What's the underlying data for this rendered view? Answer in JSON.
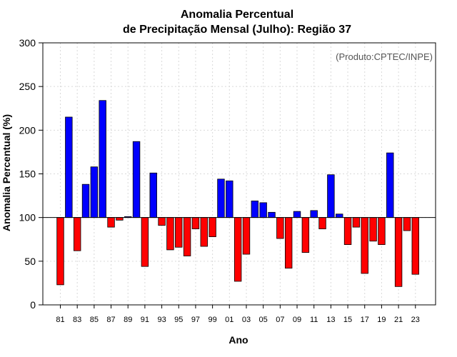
{
  "chart_data": {
    "type": "bar",
    "title_line1": "Anomalia Percentual",
    "title_line2": "de Precipitação Mensal (Julho): Região 37",
    "xlabel": "Ano",
    "ylabel": "Anomalia Percentual (%)",
    "credit": "(Produto:CPTEC/INPE)",
    "baseline": 100,
    "ylim": [
      0,
      300
    ],
    "yticks": [
      "0",
      "50",
      "100",
      "150",
      "200",
      "250",
      "300"
    ],
    "grid": true,
    "categories": [
      "81",
      "82",
      "83",
      "84",
      "85",
      "86",
      "87",
      "88",
      "89",
      "90",
      "91",
      "92",
      "93",
      "94",
      "95",
      "96",
      "97",
      "98",
      "99",
      "00",
      "01",
      "02",
      "03",
      "04",
      "05",
      "06",
      "07",
      "08",
      "09",
      "10",
      "11",
      "12",
      "13",
      "14",
      "15",
      "16",
      "17",
      "18",
      "19",
      "20",
      "21",
      "22",
      "23"
    ],
    "xtick_labels": [
      "81",
      "83",
      "85",
      "87",
      "89",
      "91",
      "93",
      "95",
      "97",
      "99",
      "01",
      "03",
      "05",
      "07",
      "09",
      "11",
      "13",
      "15",
      "17",
      "19",
      "21",
      "23"
    ],
    "values": [
      23,
      215,
      62,
      138,
      158,
      234,
      89,
      97,
      101,
      187,
      44,
      151,
      91,
      63,
      66,
      56,
      87,
      67,
      78,
      144,
      142,
      27,
      58,
      119,
      117,
      106,
      76,
      42,
      107,
      60,
      108,
      87,
      149,
      104,
      69,
      89,
      36,
      73,
      69,
      174,
      21,
      85,
      35
    ],
    "colors": {
      "above": "#0000ff",
      "below": "#ff0000",
      "grid": "#d9d9d9",
      "axis": "#000000"
    }
  }
}
